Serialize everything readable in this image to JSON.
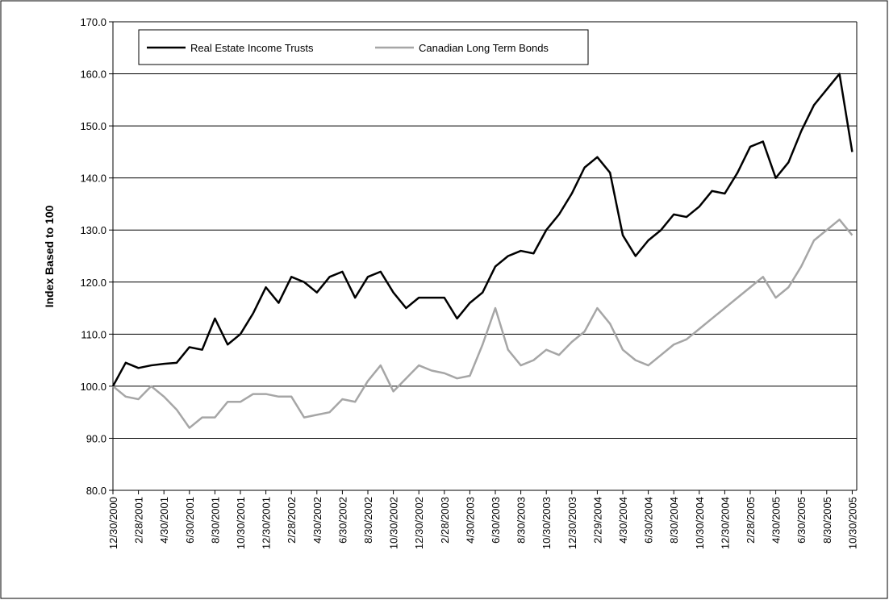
{
  "chart_data": {
    "type": "line",
    "ylabel": "Index Based to 100",
    "categories": [
      "12/30/2000",
      null,
      "2/28/2001",
      null,
      "4/30/2001",
      null,
      "6/30/2001",
      null,
      "8/30/2001",
      null,
      "10/30/2001",
      null,
      "12/30/2001",
      null,
      "2/28/2002",
      null,
      "4/30/2002",
      null,
      "6/30/2002",
      null,
      "8/30/2002",
      null,
      "10/30/2002",
      null,
      "12/30/2002",
      null,
      "2/28/2003",
      null,
      "4/30/2003",
      null,
      "6/30/2003",
      null,
      "8/30/2003",
      null,
      "10/30/2003",
      null,
      "12/30/2003",
      null,
      "2/29/2004",
      null,
      "4/30/2004",
      null,
      "6/30/2004",
      null,
      "8/30/2004",
      null,
      "10/30/2004",
      null,
      "12/30/2004",
      null,
      "2/28/2005",
      null,
      "4/30/2005",
      null,
      "6/30/2005",
      null,
      "8/30/2005",
      null,
      "10/30/2005"
    ],
    "series": [
      {
        "name": "Real Estate Income Trusts",
        "color": "#000000",
        "values": [
          100,
          104.5,
          103.5,
          104,
          104.3,
          104.5,
          107.5,
          107,
          113,
          108,
          110,
          114,
          119,
          116,
          121,
          120,
          118,
          121,
          122,
          117,
          121,
          122,
          118,
          115,
          117,
          117,
          117,
          113,
          116,
          118,
          123,
          125,
          126,
          125.5,
          130,
          133,
          137,
          142,
          144,
          141,
          129,
          125,
          128,
          130,
          133,
          132.5,
          134.5,
          137.5,
          137,
          141,
          146,
          147,
          140,
          143,
          149,
          154,
          157,
          160,
          145
        ]
      },
      {
        "name": "Canadian Long Term Bonds",
        "color": "#a6a6a6",
        "values": [
          100,
          98,
          97.5,
          100,
          98,
          95.5,
          92,
          94,
          94,
          97,
          97,
          98.5,
          98.5,
          98,
          98,
          94,
          94.5,
          95,
          97.5,
          97,
          101,
          104,
          99,
          101.5,
          104,
          103,
          102.5,
          101.5,
          102,
          108,
          115,
          107,
          104,
          105,
          107,
          106,
          108.5,
          110.5,
          115,
          112,
          107,
          105,
          104,
          106,
          108,
          109,
          111,
          113,
          115,
          117,
          119,
          121,
          117,
          119,
          123,
          128,
          130,
          132,
          129
        ]
      }
    ],
    "ylim": [
      80,
      170
    ],
    "yticks": [
      {
        "value": 80,
        "label": "80.0"
      },
      {
        "value": 90,
        "label": "90.0"
      },
      {
        "value": 100,
        "label": "100.0"
      },
      {
        "value": 110,
        "label": "110.0"
      },
      {
        "value": 120,
        "label": "120.0"
      },
      {
        "value": 130,
        "label": "130.0"
      },
      {
        "value": 140,
        "label": "140.0"
      },
      {
        "value": 150,
        "label": "150.0"
      },
      {
        "value": 160,
        "label": "160.0"
      },
      {
        "value": 170,
        "label": "170.0"
      }
    ],
    "grid": true,
    "legend": "top-left"
  }
}
